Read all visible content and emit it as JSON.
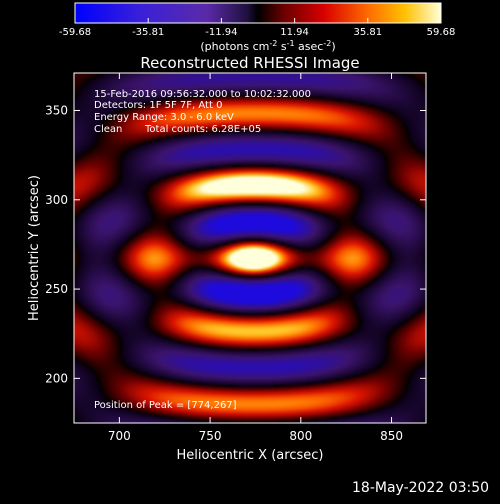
{
  "colorbar": {
    "ticks": [
      "-59.68",
      "-35.81",
      "-11.94",
      "11.94",
      "35.81",
      "59.68"
    ],
    "tick_values": [
      -59.68,
      -35.81,
      -11.94,
      11.94,
      35.81,
      59.68
    ],
    "unit_main": "(photons cm",
    "unit_sup1": "-2",
    "unit_mid": " s",
    "unit_sup2": "-1",
    "unit_tail": " asec",
    "unit_sup3": "-2",
    "unit_close": ")",
    "min": -59.68,
    "max": 59.68
  },
  "footer": {
    "timestamp": "18-May-2022 03:50"
  },
  "chart_data": {
    "type": "heatmap",
    "title": "Reconstructed RHESSI Image",
    "xlabel": "Heliocentric X (arcsec)",
    "ylabel": "Heliocentric Y (arcsec)",
    "xlim": [
      675,
      869
    ],
    "ylim": [
      175,
      371
    ],
    "xticks": [
      700,
      750,
      800,
      850
    ],
    "yticks": [
      200,
      250,
      300,
      350
    ],
    "xtick_labels": [
      "700",
      "750",
      "800",
      "850"
    ],
    "ytick_labels": [
      "200",
      "250",
      "300",
      "350"
    ],
    "annotations": {
      "time_range": "15-Feb-2016 09:56:32.000 to 10:02:32.000",
      "detectors": "Detectors: 1F 5F 7F, Att 0",
      "energy": "Energy Range: 3.0 - 6.0 keV",
      "method": "Clean",
      "total_counts": "Total counts: 6.28E+05",
      "peak": "Position of Peak = [774,267]"
    },
    "peak": {
      "x": 774,
      "y": 267,
      "value": 59.68
    },
    "colorscale": "red-temperature (blue negative, black zero, yellow-white positive)",
    "value_range": [
      -59.68,
      59.68
    ],
    "sources": [
      {
        "x": 774,
        "y": 267,
        "amplitude": 59.68
      },
      {
        "x": 774,
        "y": 309,
        "amplitude": 45.0
      },
      {
        "x": 774,
        "y": 287,
        "amplitude": -30.0
      },
      {
        "x": 774,
        "y": 249,
        "amplitude": -40.0
      }
    ]
  }
}
